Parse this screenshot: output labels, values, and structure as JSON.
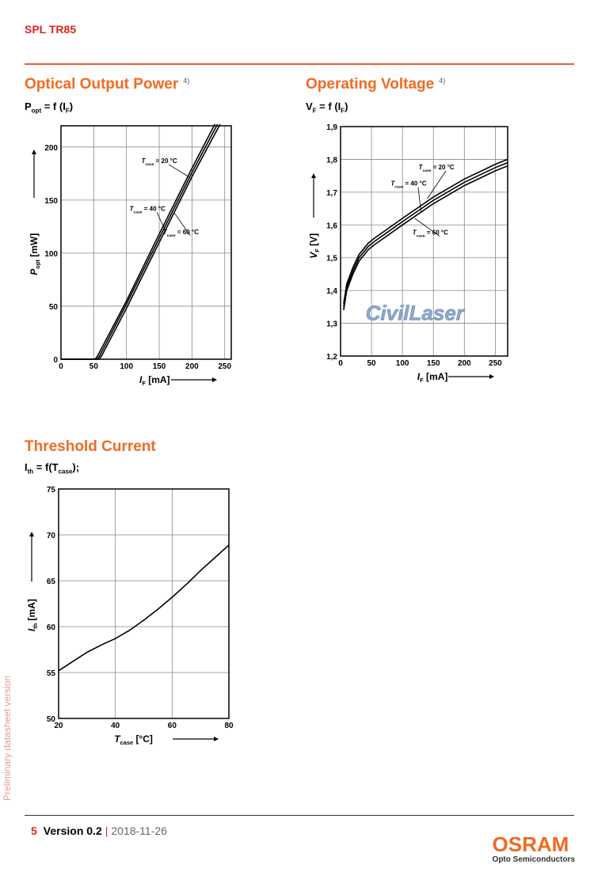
{
  "header": {
    "title": "SPL TR85"
  },
  "sections": {
    "optical": {
      "title": "Optical Output Power",
      "note": "4)",
      "formula": {
        "main": "P",
        "sub": "opt",
        "rest": " = f (I",
        "sub2": "F",
        "end": ")"
      }
    },
    "voltage": {
      "title": "Operating Voltage",
      "note": "4)",
      "formula": {
        "main": "V",
        "sub": "F",
        "rest": " = f (I",
        "sub2": "F",
        "end": ")"
      }
    },
    "threshold": {
      "title": "Threshold Current",
      "formula": {
        "main": "I",
        "sub": "th",
        "rest": " = f(T",
        "sub2": "case",
        "end": ");"
      }
    }
  },
  "chart_data": [
    {
      "type": "line",
      "xlabel": "I_F [mA]",
      "ylabel": "P_opt [mW]",
      "xlim": [
        0,
        260
      ],
      "ylim": [
        0,
        220
      ],
      "xticks": [
        0,
        50,
        100,
        150,
        200,
        250
      ],
      "yticks": [
        0,
        50,
        100,
        150,
        200
      ],
      "series": [
        {
          "name": "T_case = 20 °C",
          "points": [
            [
              0,
              0
            ],
            [
              52,
              0
            ],
            [
              56,
              3
            ],
            [
              60,
              8
            ],
            [
              100,
              55
            ],
            [
              150,
              118
            ],
            [
              200,
              180
            ],
            [
              235,
              224
            ]
          ]
        },
        {
          "name": "T_case = 40 °C",
          "points": [
            [
              0,
              0
            ],
            [
              55,
              0
            ],
            [
              59,
              3
            ],
            [
              63,
              8
            ],
            [
              100,
              52
            ],
            [
              150,
              114
            ],
            [
              200,
              176
            ],
            [
              239,
              224
            ]
          ]
        },
        {
          "name": "T_case = 60 °C",
          "points": [
            [
              0,
              0
            ],
            [
              58,
              0
            ],
            [
              62,
              3
            ],
            [
              66,
              8
            ],
            [
              100,
              48
            ],
            [
              150,
              110
            ],
            [
              200,
              172
            ],
            [
              243,
              224
            ]
          ]
        }
      ],
      "annotations": [
        {
          "text": "T_case = 20 °C",
          "at": [
            150,
            185
          ],
          "target": [
            195,
            172
          ]
        },
        {
          "text": "T_case = 40 °C",
          "at": [
            132,
            140
          ],
          "target": [
            160,
            120
          ]
        },
        {
          "text": "T_case = 60 °C",
          "at": [
            183,
            118
          ],
          "target": [
            173,
            138
          ]
        }
      ]
    },
    {
      "type": "line",
      "xlabel": "I_F [mA]",
      "ylabel": "V_F [V]",
      "xlim": [
        0,
        270
      ],
      "ylim": [
        1.2,
        1.9
      ],
      "xticks": [
        0,
        50,
        100,
        150,
        200,
        250
      ],
      "yticks": [
        1.2,
        1.3,
        1.4,
        1.5,
        1.6,
        1.7,
        1.8,
        1.9
      ],
      "series": [
        {
          "name": "T_case = 20 °C",
          "points": [
            [
              5,
              1.36
            ],
            [
              10,
              1.42
            ],
            [
              20,
              1.47
            ],
            [
              30,
              1.51
            ],
            [
              45,
              1.545
            ],
            [
              55,
              1.56
            ],
            [
              70,
              1.58
            ],
            [
              100,
              1.62
            ],
            [
              150,
              1.685
            ],
            [
              200,
              1.74
            ],
            [
              250,
              1.785
            ],
            [
              270,
              1.8
            ]
          ]
        },
        {
          "name": "T_case = 40 °C",
          "points": [
            [
              5,
              1.35
            ],
            [
              10,
              1.41
            ],
            [
              20,
              1.46
            ],
            [
              30,
              1.5
            ],
            [
              45,
              1.535
            ],
            [
              55,
              1.55
            ],
            [
              70,
              1.57
            ],
            [
              100,
              1.61
            ],
            [
              150,
              1.675
            ],
            [
              200,
              1.73
            ],
            [
              250,
              1.775
            ],
            [
              270,
              1.79
            ]
          ]
        },
        {
          "name": "T_case = 60 °C",
          "points": [
            [
              5,
              1.34
            ],
            [
              10,
              1.4
            ],
            [
              20,
              1.45
            ],
            [
              30,
              1.49
            ],
            [
              45,
              1.525
            ],
            [
              55,
              1.54
            ],
            [
              70,
              1.56
            ],
            [
              100,
              1.6
            ],
            [
              150,
              1.665
            ],
            [
              200,
              1.72
            ],
            [
              250,
              1.765
            ],
            [
              270,
              1.78
            ]
          ]
        }
      ],
      "annotations": [
        {
          "text": "T_case = 20 °C",
          "at": [
            155,
            1.77
          ],
          "target": [
            140,
            1.68
          ]
        },
        {
          "text": "T_case = 40 °C",
          "at": [
            110,
            1.72
          ],
          "target": [
            130,
            1.64
          ]
        },
        {
          "text": "T_case = 60 °C",
          "at": [
            145,
            1.57
          ],
          "target": [
            120,
            1.62
          ]
        }
      ],
      "watermark": "CivilLaser"
    },
    {
      "type": "line",
      "xlabel": "T_case [°C]",
      "ylabel": "I_th [mA]",
      "xlim": [
        20,
        80
      ],
      "ylim": [
        50,
        75
      ],
      "xticks": [
        20,
        40,
        60,
        80
      ],
      "yticks": [
        50,
        55,
        60,
        65,
        70,
        75
      ],
      "series": [
        {
          "name": "I_th",
          "points": [
            [
              20,
              55.2
            ],
            [
              25,
              56.2
            ],
            [
              30,
              57.2
            ],
            [
              35,
              58.0
            ],
            [
              40,
              58.7
            ],
            [
              45,
              59.6
            ],
            [
              50,
              60.7
            ],
            [
              55,
              61.9
            ],
            [
              60,
              63.2
            ],
            [
              65,
              64.6
            ],
            [
              70,
              66.1
            ],
            [
              75,
              67.5
            ],
            [
              80,
              68.9
            ]
          ]
        }
      ]
    }
  ],
  "footer": {
    "page": "5",
    "version": "Version 0.2",
    "separator": "|",
    "date": "2018-11-26"
  },
  "side_note": "Preliminary datasheet version",
  "logo": {
    "brand": "OSRAM",
    "sub": "Opto Semiconductors"
  }
}
